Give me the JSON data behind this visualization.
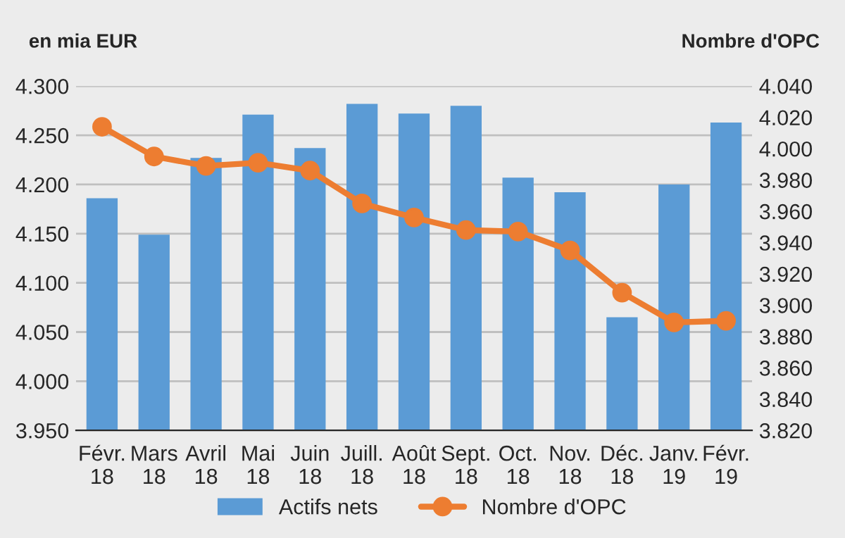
{
  "chart_data": {
    "type": "bar",
    "ylabel": "en mia EUR",
    "y2label": "Nombre d'OPC",
    "categories": [
      "Févr.\n18",
      "Mars\n18",
      "Avril\n18",
      "Mai\n18",
      "Juin\n18",
      "Juill.\n18",
      "Août\n18",
      "Sept.\n18",
      "Oct.\n18",
      "Nov.\n18",
      "Déc.\n18",
      "Janv.\n19",
      "Févr.\n19"
    ],
    "series": [
      {
        "name": "Actifs nets",
        "color": "#5b9bd5",
        "values": [
          4.186,
          4.149,
          4.227,
          4.271,
          4.237,
          4.282,
          4.272,
          4.28,
          4.207,
          4.192,
          4.065,
          4.2,
          4.263
        ]
      },
      {
        "name": "Nombre d'OPC",
        "type": "line",
        "axis": "y2",
        "color": "#ed7d31",
        "marker": "circle",
        "values": [
          4.014,
          3.995,
          3.989,
          3.991,
          3.986,
          3.965,
          3.956,
          3.948,
          3.947,
          3.935,
          3.908,
          3.889,
          3.89
        ]
      }
    ],
    "ylim": [
      3.95,
      4.3
    ],
    "yticks": [
      {
        "value": 3.95,
        "label": "3.950"
      },
      {
        "value": 4.0,
        "label": "4.000"
      },
      {
        "value": 4.05,
        "label": "4.050"
      },
      {
        "value": 4.1,
        "label": "4.100"
      },
      {
        "value": 4.15,
        "label": "4.150"
      },
      {
        "value": 4.2,
        "label": "4.200"
      },
      {
        "value": 4.25,
        "label": "4.250"
      },
      {
        "value": 4.3,
        "label": "4.300"
      }
    ],
    "y2lim": [
      3.82,
      4.04
    ],
    "y2ticks": [
      {
        "value": 3.82,
        "label": "3.820"
      },
      {
        "value": 3.84,
        "label": "3.840"
      },
      {
        "value": 3.86,
        "label": "3.860"
      },
      {
        "value": 3.88,
        "label": "3.880"
      },
      {
        "value": 3.9,
        "label": "3.900"
      },
      {
        "value": 3.92,
        "label": "3.920"
      },
      {
        "value": 3.94,
        "label": "3.940"
      },
      {
        "value": 3.96,
        "label": "3.960"
      },
      {
        "value": 3.98,
        "label": "3.980"
      },
      {
        "value": 4.0,
        "label": "4.000"
      },
      {
        "value": 4.02,
        "label": "4.020"
      },
      {
        "value": 4.04,
        "label": "4.040"
      }
    ],
    "grid": "y",
    "legend": "bottom"
  }
}
